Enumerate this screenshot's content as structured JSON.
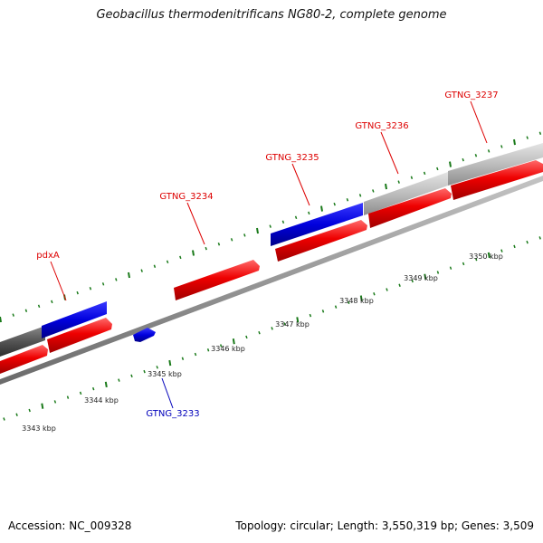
{
  "title": "Geobacillus thermodenitrificans NG80-2, complete genome",
  "footer": {
    "accession": "Accession: NC_009328",
    "summary": "Topology: circular; Length: 3,550,319 bp; Genes: 3,509"
  },
  "colors": {
    "forward_gene": "#ee0000",
    "reverse_gene": "#0000dd",
    "highlight_gene": "#b8b8b8",
    "dark_gene": "#555555",
    "tick": "#1a7a1a",
    "label_forward": "#dd0000",
    "label_reverse": "#0000bb",
    "backbone": "#8a8a8a"
  },
  "scale_labels": [
    "3343 kbp",
    "3344 kbp",
    "3345 kbp",
    "3346 kbp",
    "3347 kbp",
    "3348 kbp",
    "3349 kbp",
    "3350 kbp"
  ],
  "gene_labels": [
    {
      "text": "pdxA",
      "color": "label_forward"
    },
    {
      "text": "GTNG_3234",
      "color": "label_forward"
    },
    {
      "text": "GTNG_3235",
      "color": "label_forward"
    },
    {
      "text": "GTNG_3236",
      "color": "label_forward"
    },
    {
      "text": "GTNG_3237",
      "color": "label_forward"
    },
    {
      "text": "GTNG_3233",
      "color": "label_reverse"
    }
  ]
}
